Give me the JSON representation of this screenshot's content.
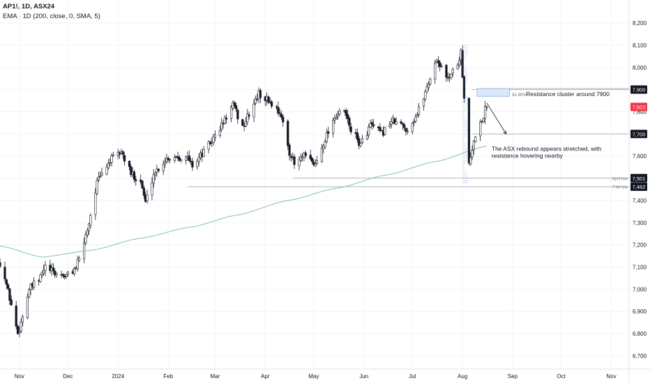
{
  "header": {
    "symbol_line": "AP1!, 1D, ASX24",
    "indicator_line": "EMA · 1D (200, close, 0, SMA, 5)"
  },
  "colors": {
    "background": "#ffffff",
    "candle_border": "#131722",
    "candle_up_fill": "#ffffff",
    "candle_down_fill": "#131722",
    "ema": "#8fc7b0",
    "level_line": "#b2b5be",
    "label_box": "#131722",
    "label_text": "#ffffff",
    "zone_fill": "#dbe7fb",
    "zone_border": "#6f93d6",
    "current_price": "#f23645",
    "volume_profile": "#7d9fe0"
  },
  "chart_data": {
    "type": "candlestick",
    "x_axis": {
      "range": [
        "2023-10-20",
        "2024-11-12"
      ],
      "ticks": [
        {
          "date": "2023-11-01",
          "label": "Nov"
        },
        {
          "date": "2023-12-01",
          "label": "Dec"
        },
        {
          "date": "2024-01-01",
          "label": "2024"
        },
        {
          "date": "2024-02-01",
          "label": "Feb"
        },
        {
          "date": "2024-03-01",
          "label": "Mar"
        },
        {
          "date": "2024-04-01",
          "label": "Apr"
        },
        {
          "date": "2024-05-01",
          "label": "May"
        },
        {
          "date": "2024-06-01",
          "label": "Jun"
        },
        {
          "date": "2024-07-01",
          "label": "Jul"
        },
        {
          "date": "2024-08-01",
          "label": "Aug"
        },
        {
          "date": "2024-09-01",
          "label": "Sep"
        },
        {
          "date": "2024-10-01",
          "label": "Oct"
        },
        {
          "date": "2024-11-01",
          "label": "Nov"
        }
      ]
    },
    "y_axis": {
      "range": [
        6640,
        8260
      ],
      "ticks": [
        "8,200",
        "8,100",
        "8,000",
        "7,900",
        "7,800",
        "7,700",
        "7,600",
        "7,500",
        "7,400",
        "7,300",
        "7,200",
        "7,100",
        "7,000",
        "6,900",
        "6,800",
        "6,700"
      ],
      "tick_values": [
        8200,
        8100,
        8000,
        7900,
        7800,
        7700,
        7600,
        7500,
        7400,
        7300,
        7200,
        7100,
        7000,
        6900,
        6800,
        6700
      ]
    },
    "price_path": [
      {
        "date": "2023-10-20",
        "close": 7120
      },
      {
        "date": "2023-10-23",
        "close": 7050
      },
      {
        "date": "2023-10-26",
        "close": 6960
      },
      {
        "date": "2023-10-31",
        "close": 6800
      },
      {
        "date": "2023-11-02",
        "close": 6850
      },
      {
        "date": "2023-11-07",
        "close": 7000
      },
      {
        "date": "2023-11-13",
        "close": 7040
      },
      {
        "date": "2023-11-17",
        "close": 7100
      },
      {
        "date": "2023-11-23",
        "close": 7070
      },
      {
        "date": "2023-11-30",
        "close": 7060
      },
      {
        "date": "2023-12-05",
        "close": 7090
      },
      {
        "date": "2023-12-08",
        "close": 7130
      },
      {
        "date": "2023-12-14",
        "close": 7300
      },
      {
        "date": "2023-12-19",
        "close": 7480
      },
      {
        "date": "2023-12-27",
        "close": 7580
      },
      {
        "date": "2024-01-03",
        "close": 7620
      },
      {
        "date": "2024-01-09",
        "close": 7520
      },
      {
        "date": "2024-01-15",
        "close": 7490
      },
      {
        "date": "2024-01-18",
        "close": 7390
      },
      {
        "date": "2024-01-23",
        "close": 7520
      },
      {
        "date": "2024-01-31",
        "close": 7590
      },
      {
        "date": "2024-02-06",
        "close": 7600
      },
      {
        "date": "2024-02-13",
        "close": 7590
      },
      {
        "date": "2024-02-16",
        "close": 7560
      },
      {
        "date": "2024-02-22",
        "close": 7610
      },
      {
        "date": "2024-02-29",
        "close": 7680
      },
      {
        "date": "2024-03-06",
        "close": 7750
      },
      {
        "date": "2024-03-12",
        "close": 7830
      },
      {
        "date": "2024-03-18",
        "close": 7730
      },
      {
        "date": "2024-03-22",
        "close": 7790
      },
      {
        "date": "2024-03-28",
        "close": 7880
      },
      {
        "date": "2024-04-03",
        "close": 7850
      },
      {
        "date": "2024-04-10",
        "close": 7800
      },
      {
        "date": "2024-04-16",
        "close": 7620
      },
      {
        "date": "2024-04-19",
        "close": 7560
      },
      {
        "date": "2024-04-25",
        "close": 7600
      },
      {
        "date": "2024-05-02",
        "close": 7560
      },
      {
        "date": "2024-05-08",
        "close": 7680
      },
      {
        "date": "2024-05-14",
        "close": 7780
      },
      {
        "date": "2024-05-20",
        "close": 7800
      },
      {
        "date": "2024-05-24",
        "close": 7720
      },
      {
        "date": "2024-05-30",
        "close": 7650
      },
      {
        "date": "2024-06-05",
        "close": 7740
      },
      {
        "date": "2024-06-12",
        "close": 7700
      },
      {
        "date": "2024-06-18",
        "close": 7760
      },
      {
        "date": "2024-06-24",
        "close": 7740
      },
      {
        "date": "2024-06-28",
        "close": 7720
      },
      {
        "date": "2024-07-04",
        "close": 7790
      },
      {
        "date": "2024-07-10",
        "close": 7910
      },
      {
        "date": "2024-07-16",
        "close": 8040
      },
      {
        "date": "2024-07-22",
        "close": 7950
      },
      {
        "date": "2024-07-29",
        "close": 8010
      },
      {
        "date": "2024-07-31",
        "close": 8080
      },
      {
        "date": "2024-08-02",
        "close": 7850
      },
      {
        "date": "2024-08-05",
        "close": 7560
      },
      {
        "date": "2024-08-07",
        "close": 7620
      },
      {
        "date": "2024-08-09",
        "close": 7700
      },
      {
        "date": "2024-08-13",
        "close": 7760
      },
      {
        "date": "2024-08-15",
        "close": 7810
      },
      {
        "date": "2024-08-16",
        "close": 7822
      }
    ],
    "ema_path": [
      {
        "date": "2023-10-20",
        "value": 7195
      },
      {
        "date": "2023-11-15",
        "value": 7145
      },
      {
        "date": "2023-12-15",
        "value": 7175
      },
      {
        "date": "2024-01-15",
        "value": 7230
      },
      {
        "date": "2024-02-15",
        "value": 7280
      },
      {
        "date": "2024-03-15",
        "value": 7335
      },
      {
        "date": "2024-04-15",
        "value": 7400
      },
      {
        "date": "2024-05-15",
        "value": 7455
      },
      {
        "date": "2024-06-15",
        "value": 7515
      },
      {
        "date": "2024-07-15",
        "value": 7575
      },
      {
        "date": "2024-08-16",
        "value": 7645
      }
    ],
    "levels": [
      {
        "value": 7900,
        "label": "7,900",
        "caption": ""
      },
      {
        "value": 7700,
        "label": "7,700",
        "caption": ""
      },
      {
        "value": 7501,
        "label": "7,501",
        "caption": "April low"
      },
      {
        "value": 7462,
        "label": "7,462",
        "caption": "Feb low"
      }
    ],
    "current_price": {
      "value": 7822,
      "label": "7,822"
    },
    "resistance_zone": {
      "from_date": "2024-08-10",
      "to_date": "2024-08-30",
      "low": 7870,
      "high": 7905,
      "fib_label": "61.80%",
      "text": "Resistance cluster around 7900"
    },
    "arrow": {
      "from_date": "2024-08-16",
      "from_value": 7840,
      "to_date": "2024-08-28",
      "to_value": 7700
    },
    "annotation": {
      "date": "2024-08-19",
      "value": 7625,
      "lines": [
        "The ASX rebound appears stretched, with",
        "resistance hovering nearby"
      ]
    }
  }
}
